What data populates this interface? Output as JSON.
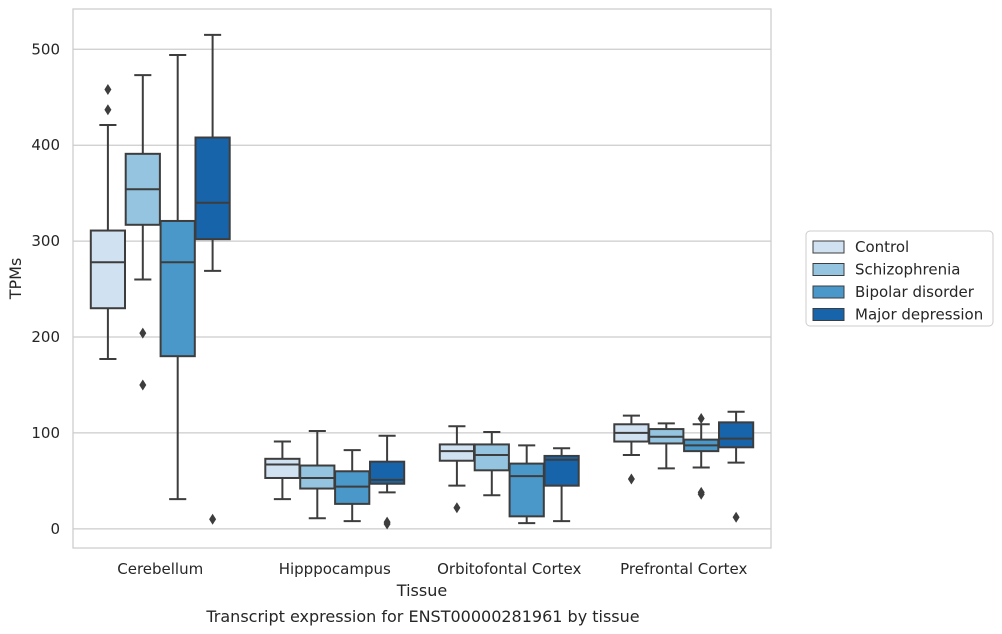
{
  "caption": "Transcript expression for ENST00000281961 by tissue",
  "chart_data": {
    "type": "box",
    "xlabel": "Tissue",
    "ylabel": "TPMs",
    "ylim": [
      -20,
      542
    ],
    "yticks": [
      0,
      100,
      200,
      300,
      400,
      500
    ],
    "grid": "horizontal",
    "legend_position": "right",
    "categories": [
      "Cerebellum",
      "Hipppocampus",
      "Orbitofontal Cortex",
      "Prefrontal Cortex"
    ],
    "series": [
      {
        "name": "Control",
        "color": "#d0e1f2",
        "boxes": [
          {
            "whislo": 177,
            "q1": 230,
            "med": 278,
            "q3": 311,
            "whishi": 421,
            "fliers": [
              437,
              458
            ]
          },
          {
            "whislo": 31,
            "q1": 53,
            "med": 67,
            "q3": 73,
            "whishi": 91,
            "fliers": []
          },
          {
            "whislo": 45,
            "q1": 71,
            "med": 81,
            "q3": 88,
            "whishi": 107,
            "fliers": [
              22
            ]
          },
          {
            "whislo": 77,
            "q1": 91,
            "med": 100,
            "q3": 109,
            "whishi": 118,
            "fliers": [
              52
            ]
          }
        ]
      },
      {
        "name": "Schizophrenia",
        "color": "#94c4df",
        "boxes": [
          {
            "whislo": 260,
            "q1": 317,
            "med": 354,
            "q3": 391,
            "whishi": 473,
            "fliers": [
              204,
              150
            ]
          },
          {
            "whislo": 11,
            "q1": 42,
            "med": 53,
            "q3": 66,
            "whishi": 102,
            "fliers": []
          },
          {
            "whislo": 35,
            "q1": 61,
            "med": 77,
            "q3": 88,
            "whishi": 101,
            "fliers": []
          },
          {
            "whislo": 63,
            "q1": 89,
            "med": 96,
            "q3": 104,
            "whishi": 110,
            "fliers": []
          }
        ]
      },
      {
        "name": "Bipolar disorder",
        "color": "#4a98c9",
        "boxes": [
          {
            "whislo": 31,
            "q1": 180,
            "med": 278,
            "q3": 321,
            "whishi": 494,
            "fliers": []
          },
          {
            "whislo": 8,
            "q1": 26,
            "med": 44,
            "q3": 60,
            "whishi": 82,
            "fliers": []
          },
          {
            "whislo": 6,
            "q1": 13,
            "med": 55,
            "q3": 68,
            "whishi": 87,
            "fliers": []
          },
          {
            "whislo": 64,
            "q1": 81,
            "med": 87,
            "q3": 93,
            "whishi": 109,
            "fliers": [
              115,
              38,
              36
            ]
          }
        ]
      },
      {
        "name": "Major depression",
        "color": "#1764ab",
        "boxes": [
          {
            "whislo": 269,
            "q1": 302,
            "med": 340,
            "q3": 408,
            "whishi": 515,
            "fliers": [
              10
            ]
          },
          {
            "whislo": 38,
            "q1": 47,
            "med": 51,
            "q3": 70,
            "whishi": 97,
            "fliers": [
              7,
              5
            ]
          },
          {
            "whislo": 8,
            "q1": 45,
            "med": 72,
            "q3": 76,
            "whishi": 84,
            "fliers": []
          },
          {
            "whislo": 69,
            "q1": 85,
            "med": 94,
            "q3": 111,
            "whishi": 122,
            "fliers": [
              12
            ]
          }
        ]
      }
    ]
  }
}
